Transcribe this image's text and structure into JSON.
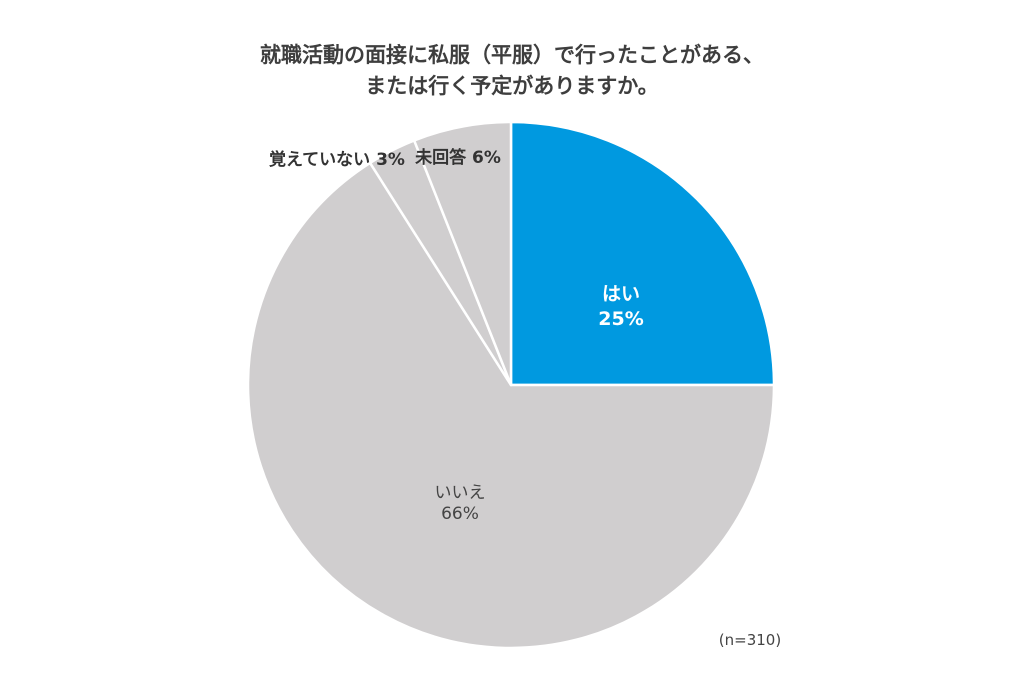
{
  "chart_data": {
    "type": "pie",
    "title_lines": [
      "就職活動の面接に私服（平服）で行ったことがある、",
      "または行く予定がありますか。"
    ],
    "slices": [
      {
        "label": "はい",
        "value": 25,
        "value_label": "25%",
        "color": "#0099e0"
      },
      {
        "label": "いいえ",
        "value": 66,
        "value_label": "66%",
        "color": "#d0cecf"
      },
      {
        "label": "覚えていない",
        "value": 3,
        "value_label": "3%",
        "color": "#d0cecf"
      },
      {
        "label": "未回答",
        "value": 6,
        "value_label": "6%",
        "color": "#d0cecf"
      }
    ],
    "outer_labels": [
      "覚えていない 3%",
      "未回答 6%"
    ],
    "start": "top",
    "direction": "clockwise",
    "note": "(n=310)"
  }
}
